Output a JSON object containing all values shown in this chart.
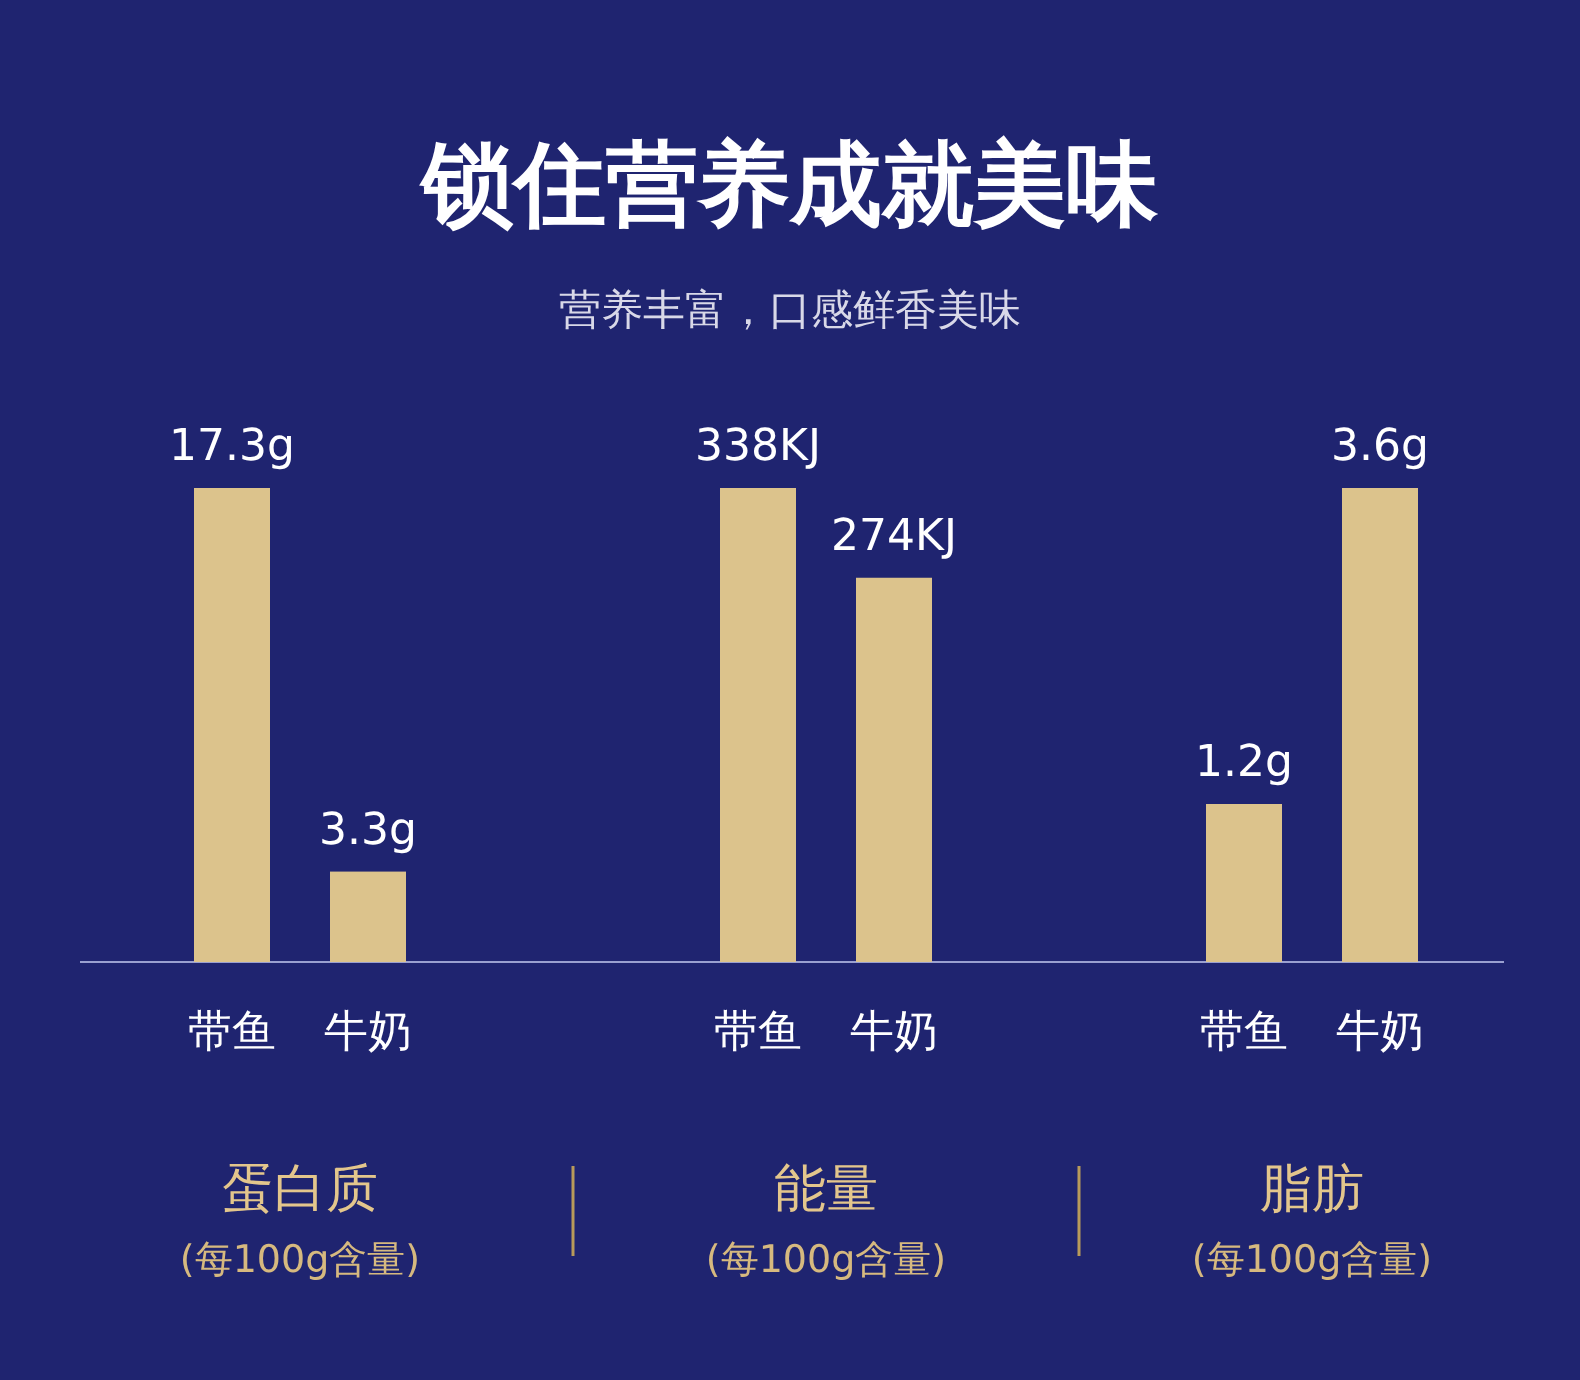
{
  "chart_data": [
    {
      "type": "other",
      "title": "锁住营养成就美味",
      "subtitle": "营养丰富，口感鲜香美味"
    },
    {
      "type": "bar",
      "xlabel": "蛋白质",
      "annotations": [
        "(每100g含量)"
      ],
      "categories": [
        "带鱼",
        "牛奶"
      ],
      "values": [
        17.3,
        3.3
      ],
      "value_labels": [
        "17.3g",
        "3.3g"
      ],
      "color": "#dcc38c"
    },
    {
      "type": "bar",
      "xlabel": "能量",
      "annotations": [
        "(每100g含量)"
      ],
      "categories": [
        "带鱼",
        "牛奶"
      ],
      "values": [
        338,
        274
      ],
      "value_labels": [
        "338KJ",
        "274KJ"
      ],
      "color": "#dcc38c"
    },
    {
      "type": "bar",
      "xlabel": "脂肪",
      "annotations": [
        "(每100g含量)"
      ],
      "categories": [
        "带鱼",
        "牛奶"
      ],
      "values": [
        1.2,
        3.6
      ],
      "value_labels": [
        "1.2g",
        "3.6g"
      ],
      "color": "#dcc38c"
    }
  ]
}
